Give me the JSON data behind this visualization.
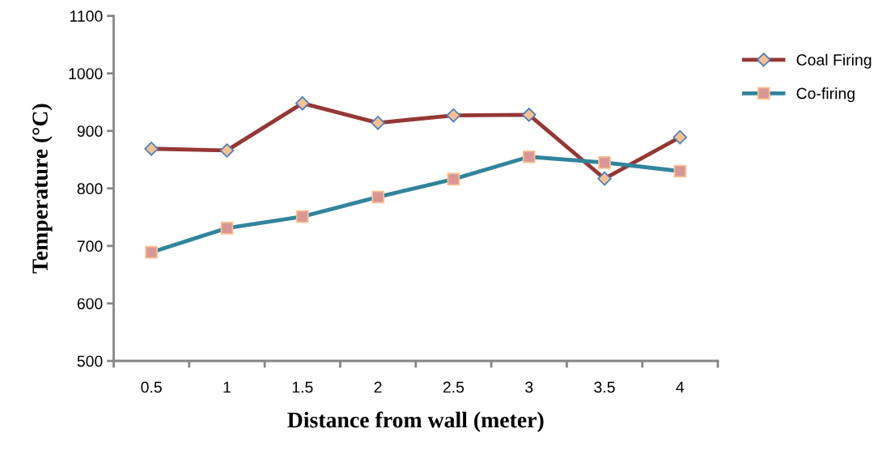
{
  "chart_data": {
    "type": "line",
    "xlabel": "Distance from wall (meter)",
    "ylabel": "Temperature (°C)",
    "categories": [
      "0.5",
      "1",
      "1.5",
      "2",
      "2.5",
      "3",
      "3.5",
      "4"
    ],
    "ylim": [
      500,
      1100
    ],
    "yticks": [
      500,
      600,
      700,
      800,
      900,
      1000,
      1100
    ],
    "grid": false,
    "legend": "right",
    "series": [
      {
        "name": "Coal Firing",
        "color": "#953735",
        "marker": "diamond",
        "values": [
          869,
          866,
          948,
          914,
          927,
          928,
          817,
          889
        ]
      },
      {
        "name": "Co-firing",
        "color": "#31849b",
        "marker": "square",
        "values": [
          689,
          731,
          751,
          785,
          816,
          855,
          845,
          830
        ]
      }
    ]
  }
}
